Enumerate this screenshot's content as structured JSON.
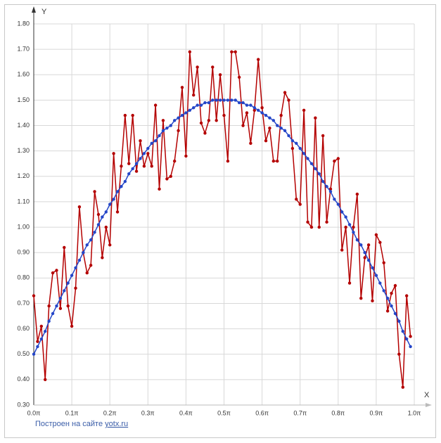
{
  "chart_data": {
    "type": "line",
    "x_label": "X",
    "y_label": "Y",
    "x": [
      0,
      0.01,
      0.02,
      0.03,
      0.04,
      0.05,
      0.06,
      0.07,
      0.08,
      0.09,
      0.1,
      0.11,
      0.12,
      0.13,
      0.14,
      0.15,
      0.16,
      0.17,
      0.18,
      0.19,
      0.2,
      0.21,
      0.22,
      0.23,
      0.24,
      0.25,
      0.26,
      0.27,
      0.28,
      0.29,
      0.3,
      0.31,
      0.32,
      0.33,
      0.34,
      0.35,
      0.36,
      0.37,
      0.38,
      0.39,
      0.4,
      0.41,
      0.42,
      0.43,
      0.44,
      0.45,
      0.46,
      0.47,
      0.48,
      0.49,
      0.5,
      0.51,
      0.52,
      0.53,
      0.54,
      0.55,
      0.56,
      0.57,
      0.58,
      0.59,
      0.6,
      0.61,
      0.62,
      0.63,
      0.64,
      0.65,
      0.66,
      0.67,
      0.68,
      0.69,
      0.7,
      0.71,
      0.72,
      0.73,
      0.74,
      0.75,
      0.76,
      0.77,
      0.78,
      0.79,
      0.8,
      0.81,
      0.82,
      0.83,
      0.84,
      0.85,
      0.86,
      0.87,
      0.88,
      0.89,
      0.9,
      0.91,
      0.92,
      0.93,
      0.94,
      0.95,
      0.96,
      0.97,
      0.98,
      0.99
    ],
    "series": [
      {
        "color": "#b40000",
        "values": [
          0.73,
          0.55,
          0.61,
          0.4,
          0.69,
          0.82,
          0.83,
          0.68,
          0.92,
          0.69,
          0.61,
          0.76,
          1.08,
          0.9,
          0.82,
          0.85,
          1.14,
          1.05,
          0.88,
          1.0,
          0.93,
          1.29,
          1.06,
          1.24,
          1.44,
          1.25,
          1.44,
          1.22,
          1.34,
          1.24,
          1.29,
          1.24,
          1.48,
          1.15,
          1.42,
          1.19,
          1.2,
          1.26,
          1.38,
          1.55,
          1.28,
          1.69,
          1.52,
          1.63,
          1.41,
          1.37,
          1.42,
          1.63,
          1.42,
          1.6,
          1.44,
          1.26,
          1.69,
          1.69,
          1.59,
          1.4,
          1.45,
          1.33,
          1.46,
          1.66,
          1.47,
          1.34,
          1.39,
          1.26,
          1.26,
          1.44,
          1.53,
          1.5,
          1.31,
          1.11,
          1.09,
          1.46,
          1.02,
          1.0,
          1.43,
          1.0,
          1.36,
          1.02,
          1.15,
          1.26,
          1.27,
          0.91,
          1.0,
          0.78,
          1.0,
          1.13,
          0.72,
          0.88,
          0.93,
          0.71,
          0.97,
          0.94,
          0.86,
          0.67,
          0.74,
          0.77,
          0.5,
          0.37,
          0.73,
          0.57
        ]
      },
      {
        "color": "#2446c8",
        "values": [
          0.5,
          0.53,
          0.56,
          0.59,
          0.63,
          0.66,
          0.69,
          0.72,
          0.75,
          0.78,
          0.81,
          0.84,
          0.87,
          0.9,
          0.93,
          0.95,
          0.98,
          1.01,
          1.04,
          1.06,
          1.09,
          1.11,
          1.14,
          1.16,
          1.18,
          1.21,
          1.23,
          1.25,
          1.27,
          1.29,
          1.31,
          1.33,
          1.34,
          1.36,
          1.38,
          1.39,
          1.4,
          1.42,
          1.43,
          1.44,
          1.45,
          1.46,
          1.47,
          1.48,
          1.48,
          1.49,
          1.49,
          1.5,
          1.5,
          1.5,
          1.5,
          1.5,
          1.5,
          1.5,
          1.49,
          1.49,
          1.48,
          1.48,
          1.47,
          1.46,
          1.45,
          1.44,
          1.43,
          1.42,
          1.4,
          1.39,
          1.38,
          1.36,
          1.34,
          1.33,
          1.31,
          1.29,
          1.27,
          1.25,
          1.23,
          1.21,
          1.18,
          1.16,
          1.14,
          1.11,
          1.09,
          1.06,
          1.04,
          1.01,
          0.98,
          0.95,
          0.93,
          0.9,
          0.87,
          0.84,
          0.81,
          0.78,
          0.75,
          0.72,
          0.69,
          0.66,
          0.63,
          0.59,
          0.56,
          0.53
        ]
      }
    ],
    "xlim": [
      0,
      1
    ],
    "xticks": [
      {
        "value": 0,
        "label": "0.0π"
      },
      {
        "value": 0.1,
        "label": "0.1π"
      },
      {
        "value": 0.2,
        "label": "0.2π"
      },
      {
        "value": 0.3,
        "label": "0.3π"
      },
      {
        "value": 0.4,
        "label": "0.4π"
      },
      {
        "value": 0.5,
        "label": "0.5π"
      },
      {
        "value": 0.6,
        "label": "0.6π"
      },
      {
        "value": 0.7,
        "label": "0.7π"
      },
      {
        "value": 0.8,
        "label": "0.8π"
      },
      {
        "value": 0.9,
        "label": "0.9π"
      },
      {
        "value": 1,
        "label": "1.0π"
      }
    ],
    "ylim": [
      0.3,
      1.8
    ],
    "yticks": [
      {
        "value": 0.3,
        "label": "0.30"
      },
      {
        "value": 0.4,
        "label": "0.40"
      },
      {
        "value": 0.5,
        "label": "0.50"
      },
      {
        "value": 0.6,
        "label": "0.60"
      },
      {
        "value": 0.7,
        "label": "0.70"
      },
      {
        "value": 0.8,
        "label": "0.80"
      },
      {
        "value": 0.9,
        "label": "0.90"
      },
      {
        "value": 1,
        "label": "1.00"
      },
      {
        "value": 1.1,
        "label": "1.10"
      },
      {
        "value": 1.2,
        "label": "1.20"
      },
      {
        "value": 1.3,
        "label": "1.30"
      },
      {
        "value": 1.4,
        "label": "1.40"
      },
      {
        "value": 1.5,
        "label": "1.50"
      },
      {
        "value": 1.6,
        "label": "1.60"
      },
      {
        "value": 1.7,
        "label": "1.70"
      },
      {
        "value": 1.8,
        "label": "1.80"
      }
    ],
    "grid": true
  },
  "footer": {
    "text": "Построен на сайте",
    "link": "yotx.ru"
  }
}
